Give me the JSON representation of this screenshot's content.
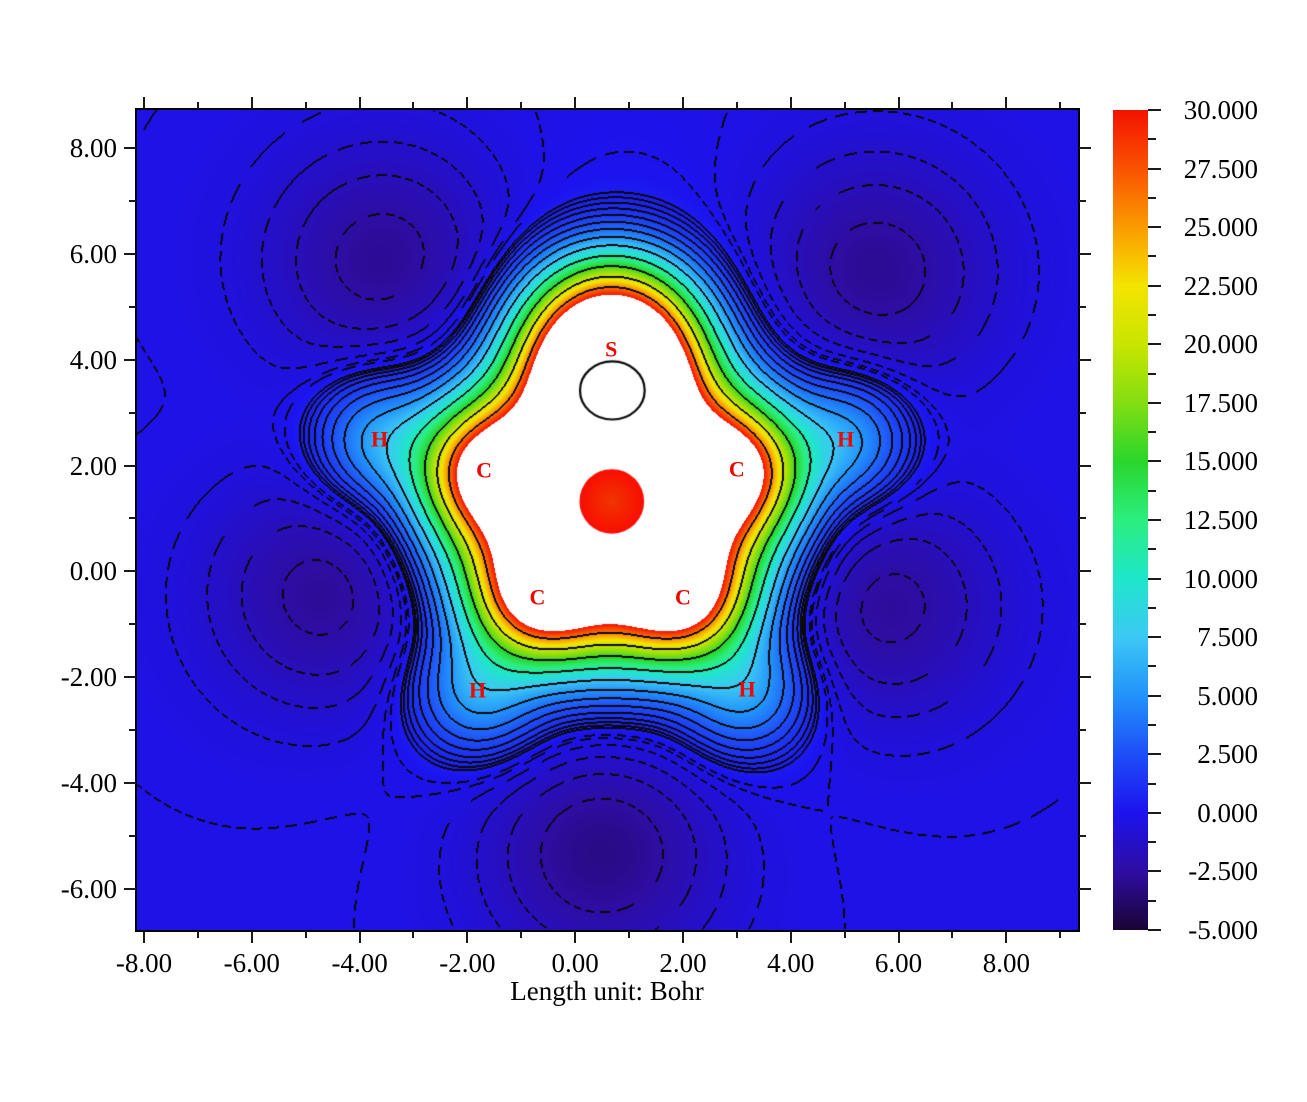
{
  "figure": {
    "xlabel": "Length unit: Bohr",
    "atom_label_color": "#ee0600",
    "background": "#ffffff"
  },
  "chart_data": {
    "type": "filled_contour_heatmap",
    "xlabel": "Length unit: Bohr",
    "x_range": [
      -8.13,
      9.33
    ],
    "y_range": [
      -6.78,
      8.72
    ],
    "x_major_ticks": [
      -8,
      -6,
      -4,
      -2,
      0,
      2,
      4,
      6,
      8
    ],
    "x_minor_ticks": [
      -7,
      -5,
      -3,
      -1,
      1,
      3,
      5,
      7,
      9
    ],
    "x_tick_labels": [
      "-8.00",
      "-6.00",
      "-4.00",
      "-2.00",
      "0.00",
      "2.00",
      "4.00",
      "6.00",
      "8.00"
    ],
    "y_major_ticks": [
      8,
      6,
      4,
      2,
      0,
      -2,
      -4,
      -6
    ],
    "y_minor_ticks": [
      7,
      5,
      3,
      1,
      -1,
      -3,
      -5
    ],
    "y_tick_labels": [
      "8.00",
      "6.00",
      "4.00",
      "2.00",
      "0.00",
      "-2.00",
      "-4.00",
      "-6.00"
    ],
    "grid": false,
    "colorbar": {
      "min": -5.0,
      "max": 30.0,
      "major_tick_step": 2.5,
      "minor_tick_step": 1.25,
      "tick_labels": [
        "30.000",
        "27.500",
        "25.000",
        "22.500",
        "20.000",
        "17.500",
        "15.000",
        "12.500",
        "10.000",
        "7.500",
        "5.000",
        "2.500",
        "0.000",
        "-2.500",
        "-5.000"
      ],
      "over_color": "#ffffff",
      "stops": [
        [
          -5.0,
          "#1a0433"
        ],
        [
          -2.5,
          "#2e0da2"
        ],
        [
          0.0,
          "#1c13ee"
        ],
        [
          2.5,
          "#1e4ef8"
        ],
        [
          5.0,
          "#2292fb"
        ],
        [
          7.5,
          "#3cc8f4"
        ],
        [
          10.0,
          "#1fe6cb"
        ],
        [
          12.5,
          "#2bee7e"
        ],
        [
          15.0,
          "#29d62c"
        ],
        [
          17.5,
          "#83de12"
        ],
        [
          20.0,
          "#c9e500"
        ],
        [
          22.5,
          "#f4e400"
        ],
        [
          25.0,
          "#fa9b00"
        ],
        [
          27.5,
          "#fa5200"
        ],
        [
          30.0,
          "#f31200"
        ]
      ]
    },
    "atoms": [
      {
        "label": "S",
        "x": 0.67,
        "y": 4.19
      },
      {
        "label": "C",
        "x": -1.69,
        "y": 1.89
      },
      {
        "label": "C",
        "x": 3.0,
        "y": 1.91
      },
      {
        "label": "C",
        "x": -0.7,
        "y": -0.51
      },
      {
        "label": "C",
        "x": 2.0,
        "y": -0.51
      },
      {
        "label": "H",
        "x": -3.63,
        "y": 2.48
      },
      {
        "label": "H",
        "x": 5.02,
        "y": 2.48
      },
      {
        "label": "H",
        "x": -1.81,
        "y": -2.26
      },
      {
        "label": "H",
        "x": 3.19,
        "y": -2.24
      }
    ],
    "contour_levels": {
      "solid": [
        0.38,
        0.55,
        0.8,
        1.15,
        1.7,
        2.5,
        3.6,
        5.2,
        7.5,
        11,
        15.5,
        20.5,
        26
      ],
      "dashed": [
        -0.07,
        -0.25,
        -0.6,
        -1.1,
        -1.7,
        -2.4
      ]
    },
    "features": {
      "ring_center_dot": {
        "x": 0.68,
        "y": 1.32,
        "r_bohr": 0.6,
        "color_inner": "#f03600",
        "color_outer": "#fa0d00"
      },
      "inner_contour_loop": {
        "x": 0.69,
        "y": 3.42,
        "rx_bohr": 0.6,
        "ry_bohr": 0.55
      }
    },
    "field_model": {
      "gaussians": [
        {
          "x": 0.67,
          "y": 4.19,
          "a": 38.0,
          "s": 1.6,
          "p": 2.5
        },
        {
          "x": -1.69,
          "y": 1.89,
          "a": 20.0,
          "s": 1.15,
          "p": 2
        },
        {
          "x": 3.0,
          "y": 1.91,
          "a": 20.0,
          "s": 1.15,
          "p": 2
        },
        {
          "x": -0.7,
          "y": -0.51,
          "a": 20.0,
          "s": 1.15,
          "p": 2
        },
        {
          "x": 2.0,
          "y": -0.51,
          "a": 20.0,
          "s": 1.15,
          "p": 2
        },
        {
          "x": -3.63,
          "y": 2.48,
          "a": 5.5,
          "s": 1.1,
          "p": 2
        },
        {
          "x": 5.02,
          "y": 2.48,
          "a": 5.5,
          "s": 1.1,
          "p": 2
        },
        {
          "x": -1.81,
          "y": -2.26,
          "a": 5.5,
          "s": 1.1,
          "p": 2
        },
        {
          "x": 3.19,
          "y": -2.24,
          "a": 5.5,
          "s": 1.1,
          "p": 2
        },
        {
          "x": 0.656,
          "y": 1.394,
          "a": 40.0,
          "s": 2.7,
          "p": 3
        },
        {
          "x": 0.66,
          "y": 1.2,
          "a": 2.6,
          "s": 4.2,
          "p": 2
        },
        {
          "x": 0.0,
          "y": 0.0,
          "a": -0.25,
          "s": 60.0,
          "p": 2
        },
        {
          "x": -3.5,
          "y": 5.8,
          "a": -2.8,
          "s": 2.2,
          "p": 2
        },
        {
          "x": 5.5,
          "y": 5.6,
          "a": -2.8,
          "s": 2.2,
          "p": 2
        },
        {
          "x": 5.6,
          "y": -0.6,
          "a": -2.9,
          "s": 2.2,
          "p": 2
        },
        {
          "x": 0.5,
          "y": -5.2,
          "a": -3.1,
          "s": 2.2,
          "p": 2
        },
        {
          "x": -4.5,
          "y": -0.4,
          "a": -2.9,
          "s": 2.2,
          "p": 2
        }
      ]
    }
  }
}
